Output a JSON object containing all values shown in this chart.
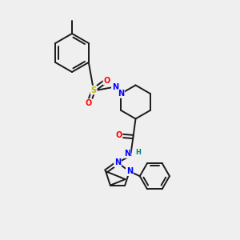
{
  "bg_color": "#efefef",
  "bond_color": "#1a1a1a",
  "colors": {
    "N": "#0000ff",
    "O": "#ff0000",
    "S": "#b8b800",
    "H": "#008080",
    "C": "#1a1a1a"
  },
  "fig_w": 3.0,
  "fig_h": 3.0,
  "dpi": 100
}
